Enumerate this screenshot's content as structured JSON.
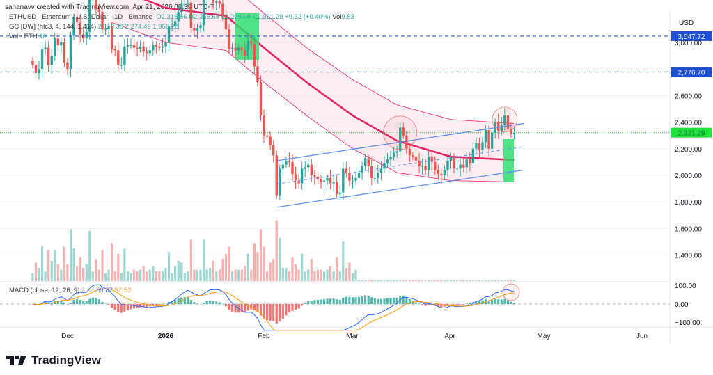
{
  "header": "sahanavv created with TradingView.com, Apr 21, 2026 09:39 UTC-7",
  "legend": {
    "symbol": "ETHUSD · Ethereum / U.S. Dollar · 1D · Binance",
    "o": "O2,316.66",
    "h": "H2,355.68",
    "l": "L2,299.99",
    "c": "C2,321.29",
    "chg": "+9.32 (+0.40%)",
    "vol_label": "Vol",
    "vol": "9.83",
    "gc": "GC [DW] (hlc3, 4, 144, 1.414)",
    "gc_vals": [
      "2,110.38",
      "2,274.49",
      "1,956.28"
    ],
    "vol_eth": "Vol · ETH",
    "vol_eth_val": "10",
    "macd": "MACD (close, 12, 26, 9)",
    "macd_vals": [
      "2.34",
      "59.87",
      "57.53"
    ]
  },
  "axis": {
    "currency": "USD",
    "price_ticks": [
      3000,
      2600,
      2400,
      2200,
      2000,
      1800,
      1600,
      1400
    ],
    "price_tick_labels": [
      "3,000.00",
      "2,600.00",
      "2,400.00",
      "2,200.00",
      "2,000.00",
      "1,800.00",
      "1,600.00",
      "1,400.00"
    ],
    "macd_ticks": [
      "100.00",
      "0.00",
      "−100.00"
    ],
    "time_labels": [
      "Dec",
      "2026",
      "Feb",
      "Mar",
      "Apr",
      "May",
      "Jun"
    ]
  },
  "badges": [
    {
      "label": "3,047.72",
      "value": 3047.72,
      "color": "#1e4fd1"
    },
    {
      "label": "2,776.70",
      "value": 2776.7,
      "color": "#1e4fd1"
    },
    {
      "label": "2,321.29",
      "value": 2321.29,
      "color": "#22e03a"
    }
  ],
  "chart_data": {
    "type": "candlestick",
    "start_date": "2025-11-20",
    "closes": [
      2830,
      2770,
      2800,
      2950,
      2960,
      2830,
      2900,
      3030,
      2980,
      3000,
      2850,
      2800,
      3050,
      3190,
      3150,
      3060,
      3030,
      3080,
      3320,
      3330,
      3250,
      3230,
      3100,
      3100,
      3120,
      2950,
      2940,
      2830,
      2830,
      2970,
      2980,
      2980,
      2960,
      2950,
      2970,
      2930,
      2920,
      2940,
      2980,
      2970,
      2960,
      2970,
      3000,
      3120,
      3120,
      3160,
      3230,
      3290,
      3290,
      3300,
      3110,
      3090,
      3110,
      3130,
      3320,
      3340,
      3370,
      3300,
      3310,
      3290,
      3210,
      3100,
      2950,
      2960,
      2940,
      2960,
      2940,
      2900,
      3010,
      2990,
      2820,
      2700,
      2450,
      2300,
      2290,
      2230,
      2150,
      1850,
      2050,
      2080,
      2110,
      2100,
      2010,
      1960,
      1940,
      2050,
      2060,
      2080,
      2000,
      1990,
      1970,
      1950,
      1960,
      1980,
      1940,
      1950,
      1860,
      1870,
      2050,
      2020,
      1960,
      1960,
      1980,
      2020,
      2070,
      2130,
      2070,
      1980,
      1980,
      2020,
      2050,
      2090,
      2120,
      2140,
      2170,
      2180,
      2360,
      2300,
      2200,
      2150,
      2140,
      2110,
      2070,
      2070,
      2040,
      2140,
      2100,
      2040,
      2010,
      2000,
      2040,
      2110,
      2140,
      2050,
      2050,
      2080,
      2060,
      2120,
      2090,
      2200,
      2240,
      2190,
      2250,
      2340,
      2200,
      2320,
      2400,
      2330,
      2380,
      2450,
      2350,
      2310,
      2321.29
    ],
    "channel": [
      [
        "2025-12-15",
        3420,
        3700,
        3150
      ],
      [
        "2026-01-01",
        3260,
        3520,
        3000
      ],
      [
        "2026-01-20",
        3200,
        3460,
        2940
      ],
      [
        "2026-02-01",
        2960,
        3220,
        2700
      ],
      [
        "2026-02-15",
        2690,
        2950,
        2440
      ],
      [
        "2026-03-01",
        2450,
        2720,
        2200
      ],
      [
        "2026-03-15",
        2260,
        2530,
        2020
      ],
      [
        "2026-04-01",
        2140,
        2420,
        1960
      ],
      [
        "2026-04-21",
        2115,
        2390,
        1950
      ]
    ],
    "trend_upper": [
      [
        "2026-02-05",
        2110
      ],
      [
        "2026-04-24",
        2390
      ]
    ],
    "trend_lower": [
      [
        "2026-02-05",
        1760
      ],
      [
        "2026-04-24",
        2040
      ]
    ],
    "circles": [
      [
        "2026-03-16",
        2320
      ],
      [
        "2026-04-18",
        2420
      ]
    ],
    "colors": {
      "up": "#26a69a",
      "down": "#ef5350",
      "channel": "#e91e63",
      "trend": "#5b8def",
      "macd": "#2962ff",
      "signal": "#ff9800"
    }
  },
  "brand": "TradingView"
}
